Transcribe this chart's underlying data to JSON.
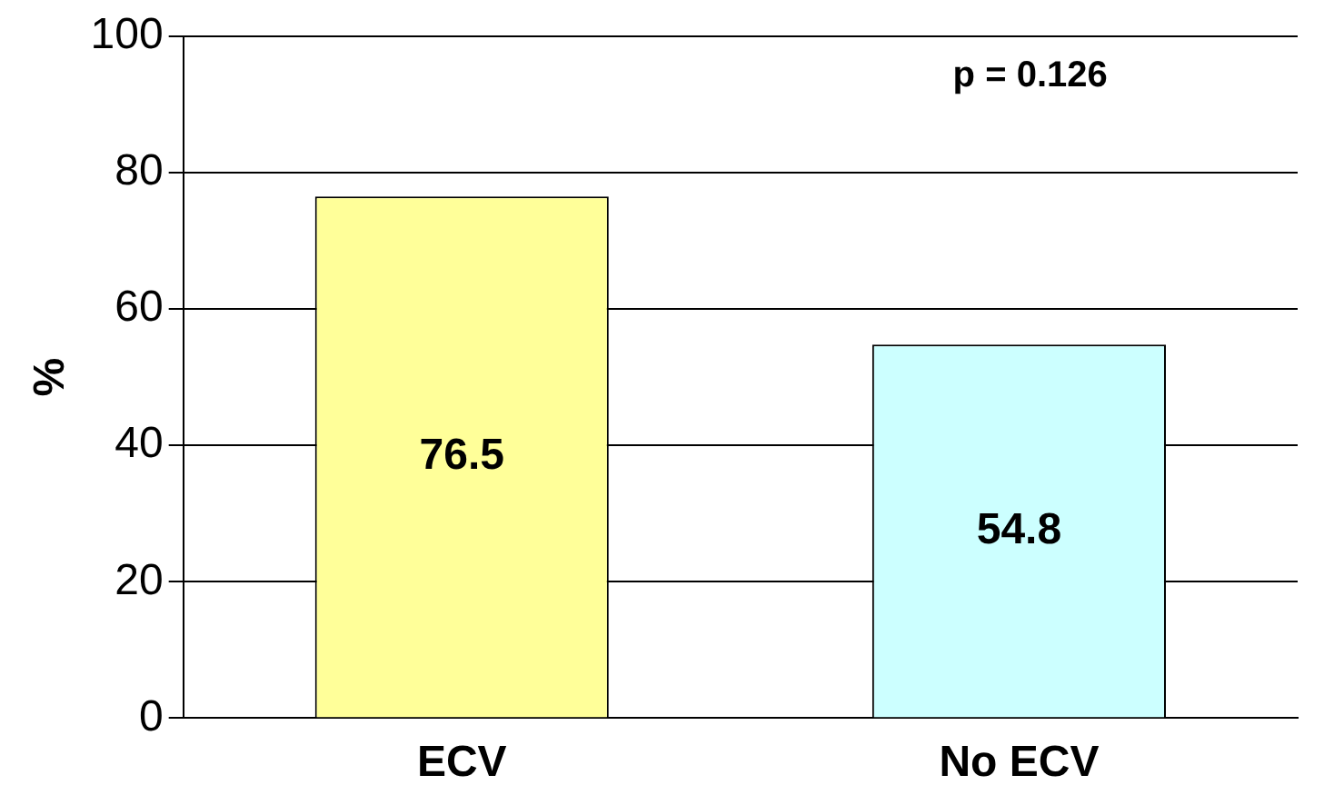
{
  "chart_data": {
    "type": "bar",
    "ylabel": "%",
    "categories": [
      "ECV",
      "No ECV"
    ],
    "values": [
      76.5,
      54.8
    ],
    "colors": [
      "#ffff99",
      "#ccffff"
    ],
    "ylim": [
      0,
      100
    ],
    "yticks": [
      0,
      20,
      40,
      60,
      80,
      100
    ],
    "grid": "y",
    "legend": false,
    "data_labels": true,
    "annotations": [
      "p = 0.126"
    ]
  }
}
